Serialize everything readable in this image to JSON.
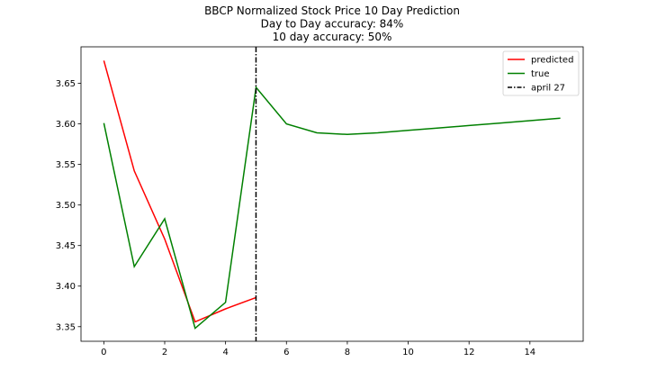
{
  "chart_data": {
    "type": "line",
    "title_lines": [
      "BBCP Normalized Stock Price 10 Day Prediction",
      "Day to Day accuracy: 84%",
      "10 day accuracy: 50%"
    ],
    "xlabel": "",
    "ylabel": "",
    "xlim": [
      -0.75,
      15.75
    ],
    "ylim": [
      3.332,
      3.695
    ],
    "x_ticks": [
      0,
      2,
      4,
      6,
      8,
      10,
      12,
      14
    ],
    "x_tick_labels": [
      "0",
      "2",
      "4",
      "6",
      "8",
      "10",
      "12",
      "14"
    ],
    "y_ticks": [
      3.35,
      3.4,
      3.45,
      3.5,
      3.55,
      3.6,
      3.65
    ],
    "y_tick_labels": [
      "3.35",
      "3.40",
      "3.45",
      "3.50",
      "3.55",
      "3.60",
      "3.65"
    ],
    "grid": false,
    "legend_position": "upper right",
    "series": [
      {
        "name": "predicted",
        "color": "#ff0000",
        "style": "solid",
        "x": [
          0,
          1,
          2,
          3,
          4,
          5
        ],
        "y": [
          3.678,
          3.542,
          3.458,
          3.356,
          3.372,
          3.386
        ]
      },
      {
        "name": "true",
        "color": "#008000",
        "style": "solid",
        "x": [
          0,
          1,
          2,
          3,
          4,
          5,
          6,
          7,
          8,
          9,
          10,
          11,
          12,
          13,
          14,
          15
        ],
        "y": [
          3.601,
          3.424,
          3.483,
          3.348,
          3.38,
          3.645,
          3.6,
          3.589,
          3.587,
          3.589,
          3.592,
          3.595,
          3.598,
          3.601,
          3.604,
          3.607
        ]
      }
    ],
    "vlines": [
      {
        "name": "april 27",
        "x": 5,
        "color": "#000000",
        "style": "dashdot"
      }
    ]
  }
}
